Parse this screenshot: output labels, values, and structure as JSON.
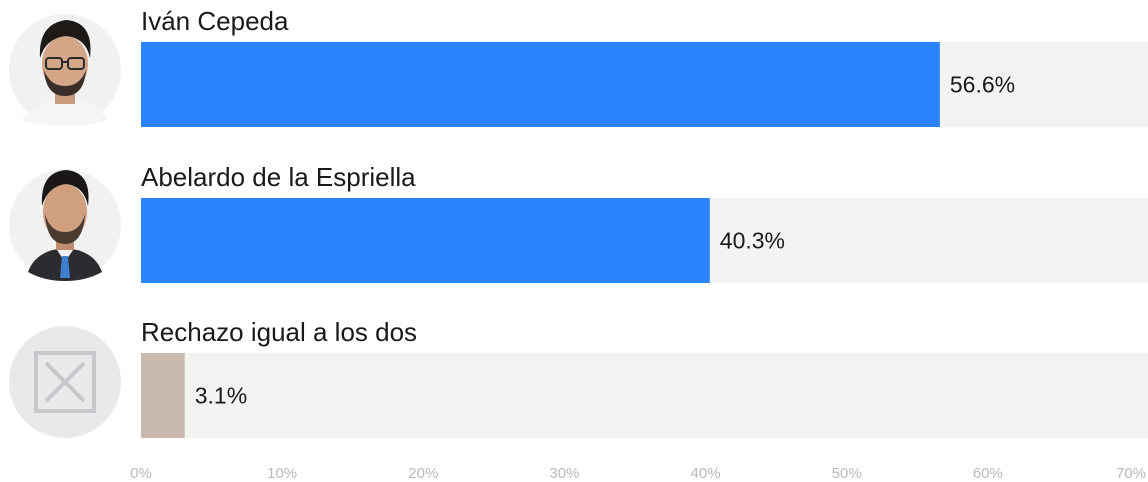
{
  "chart_data": {
    "type": "bar",
    "orientation": "horizontal",
    "categories": [
      "Iván Cepeda",
      "Abelardo de la Espriella",
      "Rechazo igual a los dos"
    ],
    "values": [
      56.6,
      40.3,
      3.1
    ],
    "value_labels": [
      "56.6%",
      "40.3%",
      "3.1%"
    ],
    "xlim": [
      0,
      70
    ],
    "x_ticks": [
      0,
      10,
      20,
      30,
      40,
      50,
      60,
      70
    ],
    "x_tick_labels": [
      "0%",
      "10%",
      "20%",
      "30%",
      "40%",
      "50%",
      "60%",
      "70%"
    ],
    "grid": false,
    "colors": {
      "bar": [
        "#2a84ff",
        "#2a84ff",
        "#c9b9ae"
      ],
      "track": "#f3f3f2",
      "avatar_bg": "#e9e9ec"
    },
    "icons": [
      "portrait-ivan-cepeda",
      "portrait-abelardo-de-la-espriella",
      "reject-x-box-icon"
    ]
  }
}
